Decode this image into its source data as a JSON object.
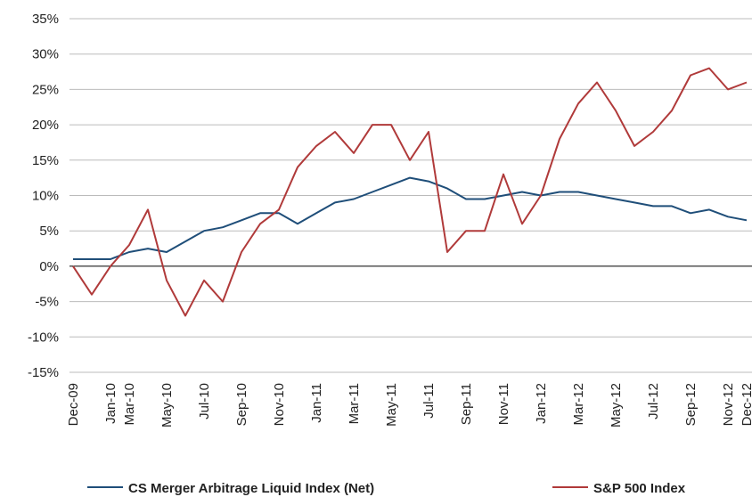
{
  "chart_data": {
    "type": "line",
    "categories": [
      "Dec-09",
      null,
      "Jan-10",
      "Mar-10",
      null,
      "May-10",
      null,
      "Jul-10",
      null,
      "Sep-10",
      null,
      "Nov-10",
      null,
      "Jan-11",
      null,
      "Mar-11",
      null,
      "May-11",
      null,
      "Jul-11",
      null,
      "Sep-11",
      null,
      "Nov-11",
      null,
      "Jan-12",
      null,
      "Mar-12",
      null,
      "May-12",
      null,
      "Jul-12",
      null,
      "Sep-12",
      null,
      "Nov-12",
      "Dec-12"
    ],
    "series": [
      {
        "name": "CS Merger Arbitrage Liquid Index (Net)",
        "color": "#1f4e79",
        "values": [
          1,
          1,
          1,
          2,
          2.5,
          2,
          3.5,
          5,
          5.5,
          6.5,
          7.5,
          7.5,
          6,
          7.5,
          9,
          9.5,
          10.5,
          11.5,
          12.5,
          12,
          11,
          9.5,
          9.5,
          10,
          10.5,
          10,
          10.5,
          10.5,
          10,
          9.5,
          9,
          8.5,
          8.5,
          7.5,
          8,
          7,
          6.5
        ]
      },
      {
        "name": "S&P 500 Index",
        "color": "#b03a3a",
        "values": [
          0,
          -4,
          0,
          3,
          8,
          -2,
          -7,
          -2,
          -5,
          2,
          6,
          8,
          14,
          17,
          19,
          16,
          20,
          20,
          15,
          19,
          2,
          5,
          5,
          13,
          6,
          10,
          18,
          23,
          26,
          22,
          17,
          19,
          22,
          27,
          28,
          25,
          26
        ]
      }
    ],
    "ylim": [
      -15,
      35
    ],
    "yticks": [
      {
        "value": -15,
        "label": "-15%"
      },
      {
        "value": -10,
        "label": "-10%"
      },
      {
        "value": -5,
        "label": "-5%"
      },
      {
        "value": 0,
        "label": "0%"
      },
      {
        "value": 5,
        "label": "5%"
      },
      {
        "value": 10,
        "label": "10%"
      },
      {
        "value": 15,
        "label": "15%"
      },
      {
        "value": 20,
        "label": "20%"
      },
      {
        "value": 25,
        "label": "25%"
      },
      {
        "value": 30,
        "label": "30%"
      },
      {
        "value": 35,
        "label": "35%"
      }
    ],
    "grid": true
  }
}
